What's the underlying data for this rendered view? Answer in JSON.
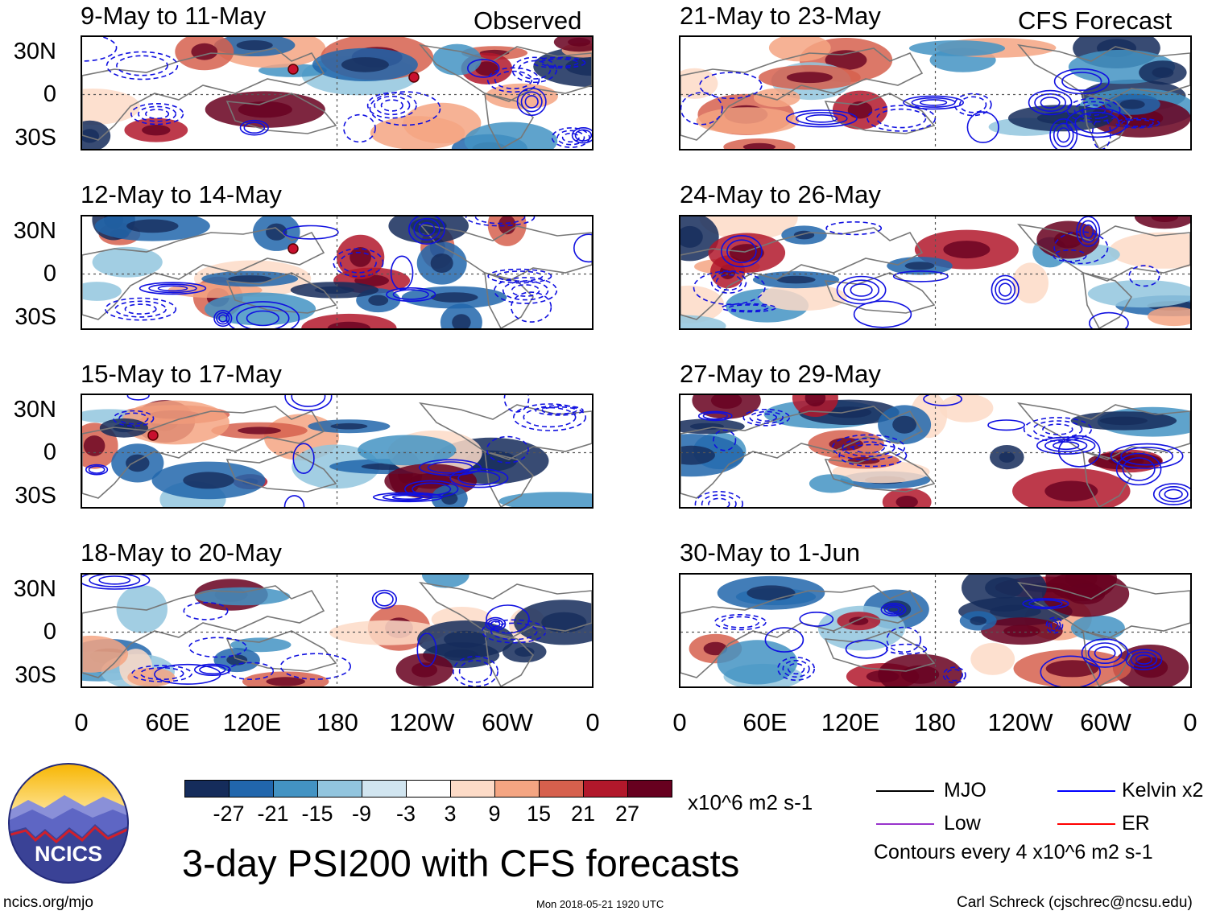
{
  "header": {
    "observed_label": "Observed",
    "forecast_label": "CFS Forecast"
  },
  "panels": [
    {
      "title": "9-May to 11-May",
      "column": "observed",
      "storms": 2
    },
    {
      "title": "12-May to 14-May",
      "column": "observed",
      "storms": 1
    },
    {
      "title": "15-May to 17-May",
      "column": "observed",
      "storms": 1
    },
    {
      "title": "18-May to 20-May",
      "column": "observed",
      "storms": 0
    },
    {
      "title": "21-May to 23-May",
      "column": "forecast",
      "storms": 0
    },
    {
      "title": "24-May to 26-May",
      "column": "forecast",
      "storms": 0
    },
    {
      "title": "27-May to 29-May",
      "column": "forecast",
      "storms": 0
    },
    {
      "title": "30-May to 1-Jun",
      "column": "forecast",
      "storms": 0
    }
  ],
  "axes": {
    "lat_labels": [
      "30N",
      "0",
      "30S"
    ],
    "lon_labels": [
      "0",
      "60E",
      "120E",
      "180",
      "120W",
      "60W",
      "0"
    ]
  },
  "colorbar": {
    "colors": [
      "#152c5b",
      "#2166ac",
      "#4393c3",
      "#92c5de",
      "#d1e5f0",
      "#ffffff",
      "#fddbc7",
      "#f4a582",
      "#d6604d",
      "#b2182b",
      "#67001f"
    ],
    "ticks": [
      "-27",
      "-21",
      "-15",
      "-9",
      "-3",
      "3",
      "9",
      "15",
      "21",
      "27"
    ],
    "units": "x10^6 m2 s-1"
  },
  "legend": {
    "items": [
      {
        "label": "MJO",
        "color": "#000000"
      },
      {
        "label": "Kelvin x2",
        "color": "#0000ff"
      },
      {
        "label": "Low",
        "color": "#9933cc"
      },
      {
        "label": "ER",
        "color": "#ff0000"
      }
    ],
    "contour_note": "Contours every 4 x10^6 m2 s-1"
  },
  "footer": {
    "logo_text": "NCICS",
    "main_title": "3-day PSI200 with CFS forecasts",
    "website": "ncics.org/mjo",
    "timestamp": "Mon 2018-05-21 1920 UTC",
    "author": "Carl Schreck (cjschrec@ncsu.edu)"
  }
}
